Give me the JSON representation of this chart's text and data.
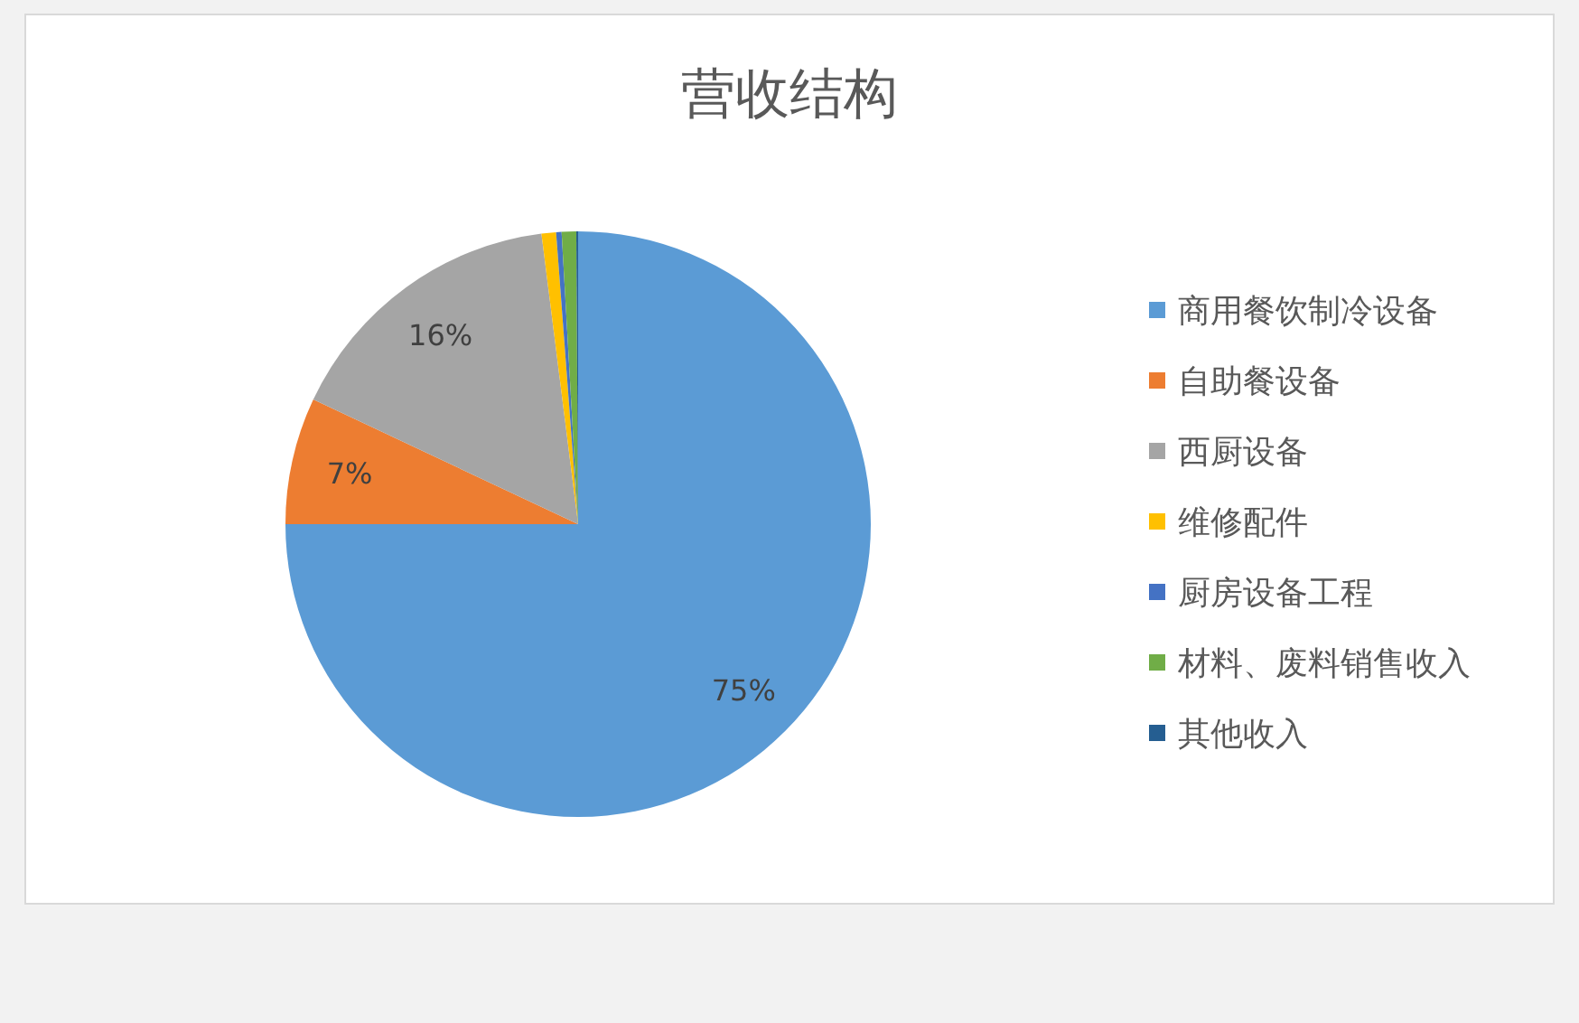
{
  "chart_data": {
    "type": "pie",
    "title": "营收结构",
    "categories": [
      "商用餐饮制冷设备",
      "自助餐设备",
      "西厨设备",
      "维修配件",
      "厨房设备工程",
      "材料、废料销售收入",
      "其他收入"
    ],
    "values": [
      75,
      7,
      16,
      0.8,
      0.3,
      0.8,
      0.1
    ],
    "value_labels": [
      "75%",
      "7%",
      "16%",
      null,
      null,
      null,
      null
    ],
    "colors": [
      "#5b9bd5",
      "#ed7d31",
      "#a5a5a5",
      "#ffc000",
      "#4472c4",
      "#70ad47",
      "#255e91"
    ],
    "legend": "right"
  }
}
